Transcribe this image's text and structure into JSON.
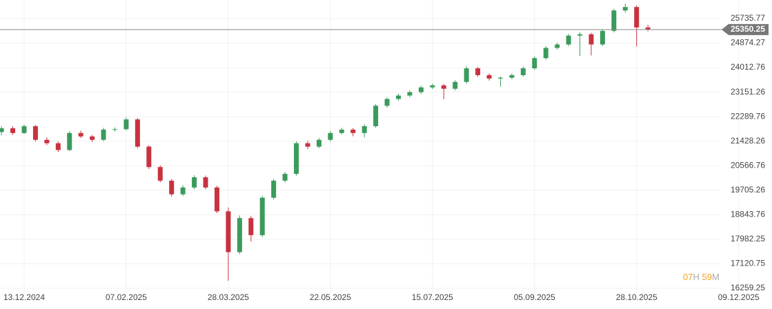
{
  "chart_data": {
    "type": "candlestick",
    "categories": [
      null,
      null,
      "13.12.2024",
      null,
      null,
      null,
      null,
      null,
      null,
      null,
      null,
      "07.02.2025",
      null,
      null,
      null,
      null,
      null,
      null,
      null,
      null,
      "28.03.2025",
      null,
      null,
      null,
      null,
      null,
      null,
      null,
      null,
      "22.05.2025",
      null,
      null,
      null,
      null,
      null,
      null,
      null,
      null,
      "15.07.2025",
      null,
      null,
      null,
      null,
      null,
      null,
      null,
      null,
      "05.09.2025",
      null,
      null,
      null,
      null,
      null,
      null,
      null,
      null,
      "28.10.2025",
      null,
      null,
      null,
      null,
      null,
      null,
      null,
      null,
      "09.12.2025"
    ],
    "open": [
      21750,
      21883,
      21716,
      21955,
      21476,
      21357,
      21118,
      21716,
      21596,
      21476,
      21835,
      21850,
      22194,
      21237,
      20519,
      20041,
      19562,
      19801,
      20160,
      19801,
      18964,
      17528,
      18725,
      18126,
      19442,
      20041,
      20280,
      21357,
      21237,
      21476,
      21716,
      21835,
      21716,
      21955,
      22673,
      22912,
      23032,
      23152,
      23319,
      23391,
      23271,
      23511,
      23989,
      23750,
      23630,
      23660,
      23750,
      23989,
      24348,
      24707,
      24827,
      25138,
      25186,
      24827,
      25305,
      26023,
      26143,
      25425,
      null,
      null,
      null,
      null,
      null,
      null,
      null,
      null
    ],
    "high": [
      21960,
      21950,
      22010,
      22000,
      21560,
      21420,
      21780,
      21800,
      21650,
      21900,
      21910,
      22260,
      22240,
      21290,
      20580,
      20100,
      19880,
      20230,
      20220,
      19860,
      19100,
      18820,
      18800,
      19510,
      20110,
      20350,
      21420,
      21440,
      21540,
      21780,
      21900,
      21890,
      22020,
      22730,
      22970,
      23090,
      23210,
      23380,
      23450,
      23440,
      23570,
      24060,
      24040,
      23810,
      23700,
      23810,
      24050,
      24410,
      24770,
      24890,
      25200,
      25260,
      25240,
      25360,
      26080,
      26260,
      26200,
      25520,
      null,
      null,
      null,
      null,
      null,
      null,
      null,
      null
    ],
    "low": [
      21640,
      21650,
      21680,
      21420,
      21290,
      21050,
      21080,
      21540,
      21400,
      21430,
      21770,
      21800,
      21180,
      20450,
      19980,
      19480,
      19500,
      19740,
      19740,
      18900,
      16523,
      17460,
      17900,
      18060,
      19380,
      19980,
      20220,
      21150,
      21180,
      21420,
      21660,
      21600,
      21560,
      21900,
      22610,
      22850,
      22970,
      23090,
      23260,
      22900,
      23210,
      23450,
      23690,
      23560,
      23350,
      23600,
      23690,
      23930,
      24290,
      24650,
      24770,
      24420,
      24440,
      24770,
      25250,
      25950,
      24755,
      25290,
      null,
      null,
      null,
      null,
      null,
      null,
      null,
      null
    ],
    "close": [
      21883,
      21716,
      21955,
      21476,
      21357,
      21118,
      21716,
      21596,
      21476,
      21835,
      21850,
      22194,
      21237,
      20519,
      20041,
      19562,
      19801,
      20160,
      19801,
      18964,
      17528,
      18725,
      18126,
      19442,
      20041,
      20280,
      21357,
      21237,
      21476,
      21716,
      21835,
      21716,
      21955,
      22673,
      22912,
      23032,
      23152,
      23319,
      23391,
      23271,
      23511,
      23989,
      23750,
      23630,
      23660,
      23750,
      23989,
      24348,
      24707,
      24827,
      25138,
      25186,
      24827,
      25305,
      26023,
      26143,
      25425,
      25350.25,
      null,
      null,
      null,
      null,
      null,
      null,
      null,
      null
    ],
    "up_color": "#3a9b5c",
    "down_color": "#c8323f",
    "ylim": [
      15531,
      26390
    ],
    "yticks": [
      25735.77,
      24874.27,
      24012.76,
      23151.26,
      22289.76,
      21428.26,
      20566.76,
      19705.26,
      18843.76,
      17982.25,
      17120.75,
      16259.25
    ],
    "grid": true,
    "price_line": 25350.25,
    "countdown": {
      "hours": "07",
      "h": "H",
      "minutes": "59",
      "m": "M"
    }
  }
}
